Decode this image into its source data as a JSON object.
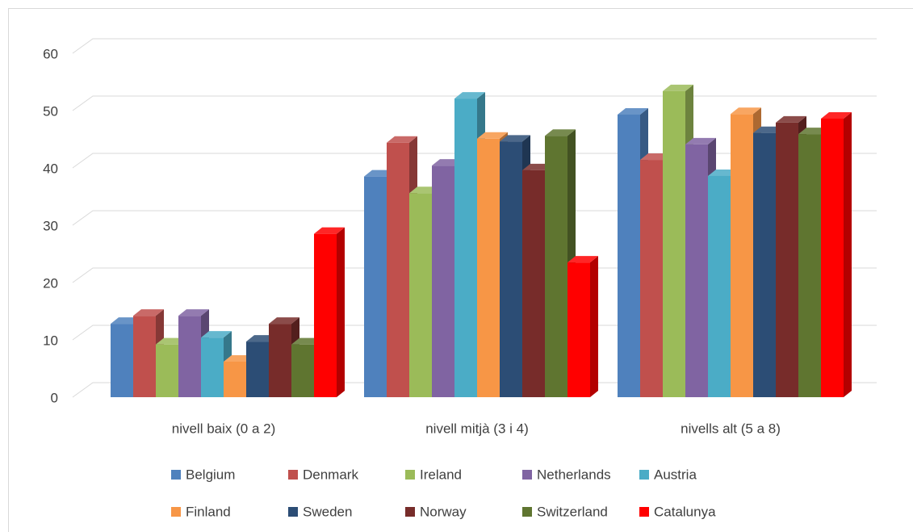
{
  "chart_data": {
    "type": "bar3d",
    "categories": [
      "nivell baix (0 a 2)",
      "nivell mitjà (3 i 4)",
      "nivells alt (5 a 8)"
    ],
    "series": [
      {
        "name": "Belgium",
        "color": "#4f81bd",
        "values": [
          12.8,
          38.5,
          49.3
        ]
      },
      {
        "name": "Denmark",
        "color": "#c0504d",
        "values": [
          14.2,
          44.4,
          41.4
        ]
      },
      {
        "name": "Ireland",
        "color": "#9bbb59",
        "values": [
          9.2,
          35.6,
          53.4
        ]
      },
      {
        "name": "Netherlands",
        "color": "#8064a2",
        "values": [
          14.2,
          40.4,
          44.1
        ]
      },
      {
        "name": "Austria",
        "color": "#4bacc6",
        "values": [
          10.4,
          52.1,
          38.6
        ]
      },
      {
        "name": "Finland",
        "color": "#f79646",
        "values": [
          6.2,
          45.1,
          49.4
        ]
      },
      {
        "name": "Sweden",
        "color": "#2c4d75",
        "values": [
          9.7,
          44.6,
          46.1
        ]
      },
      {
        "name": "Norway",
        "color": "#772c2a",
        "values": [
          12.8,
          39.6,
          47.9
        ]
      },
      {
        "name": "Switzerland",
        "color": "#5f7530",
        "values": [
          9.2,
          45.6,
          45.9
        ]
      },
      {
        "name": "Catalunya",
        "color": "#ff0000",
        "values": [
          28.5,
          23.5,
          48.6
        ]
      }
    ],
    "ylim": [
      0,
      60
    ],
    "yticks": [
      0,
      10,
      20,
      30,
      40,
      50,
      60
    ],
    "grid": true,
    "legend": "bottom"
  }
}
